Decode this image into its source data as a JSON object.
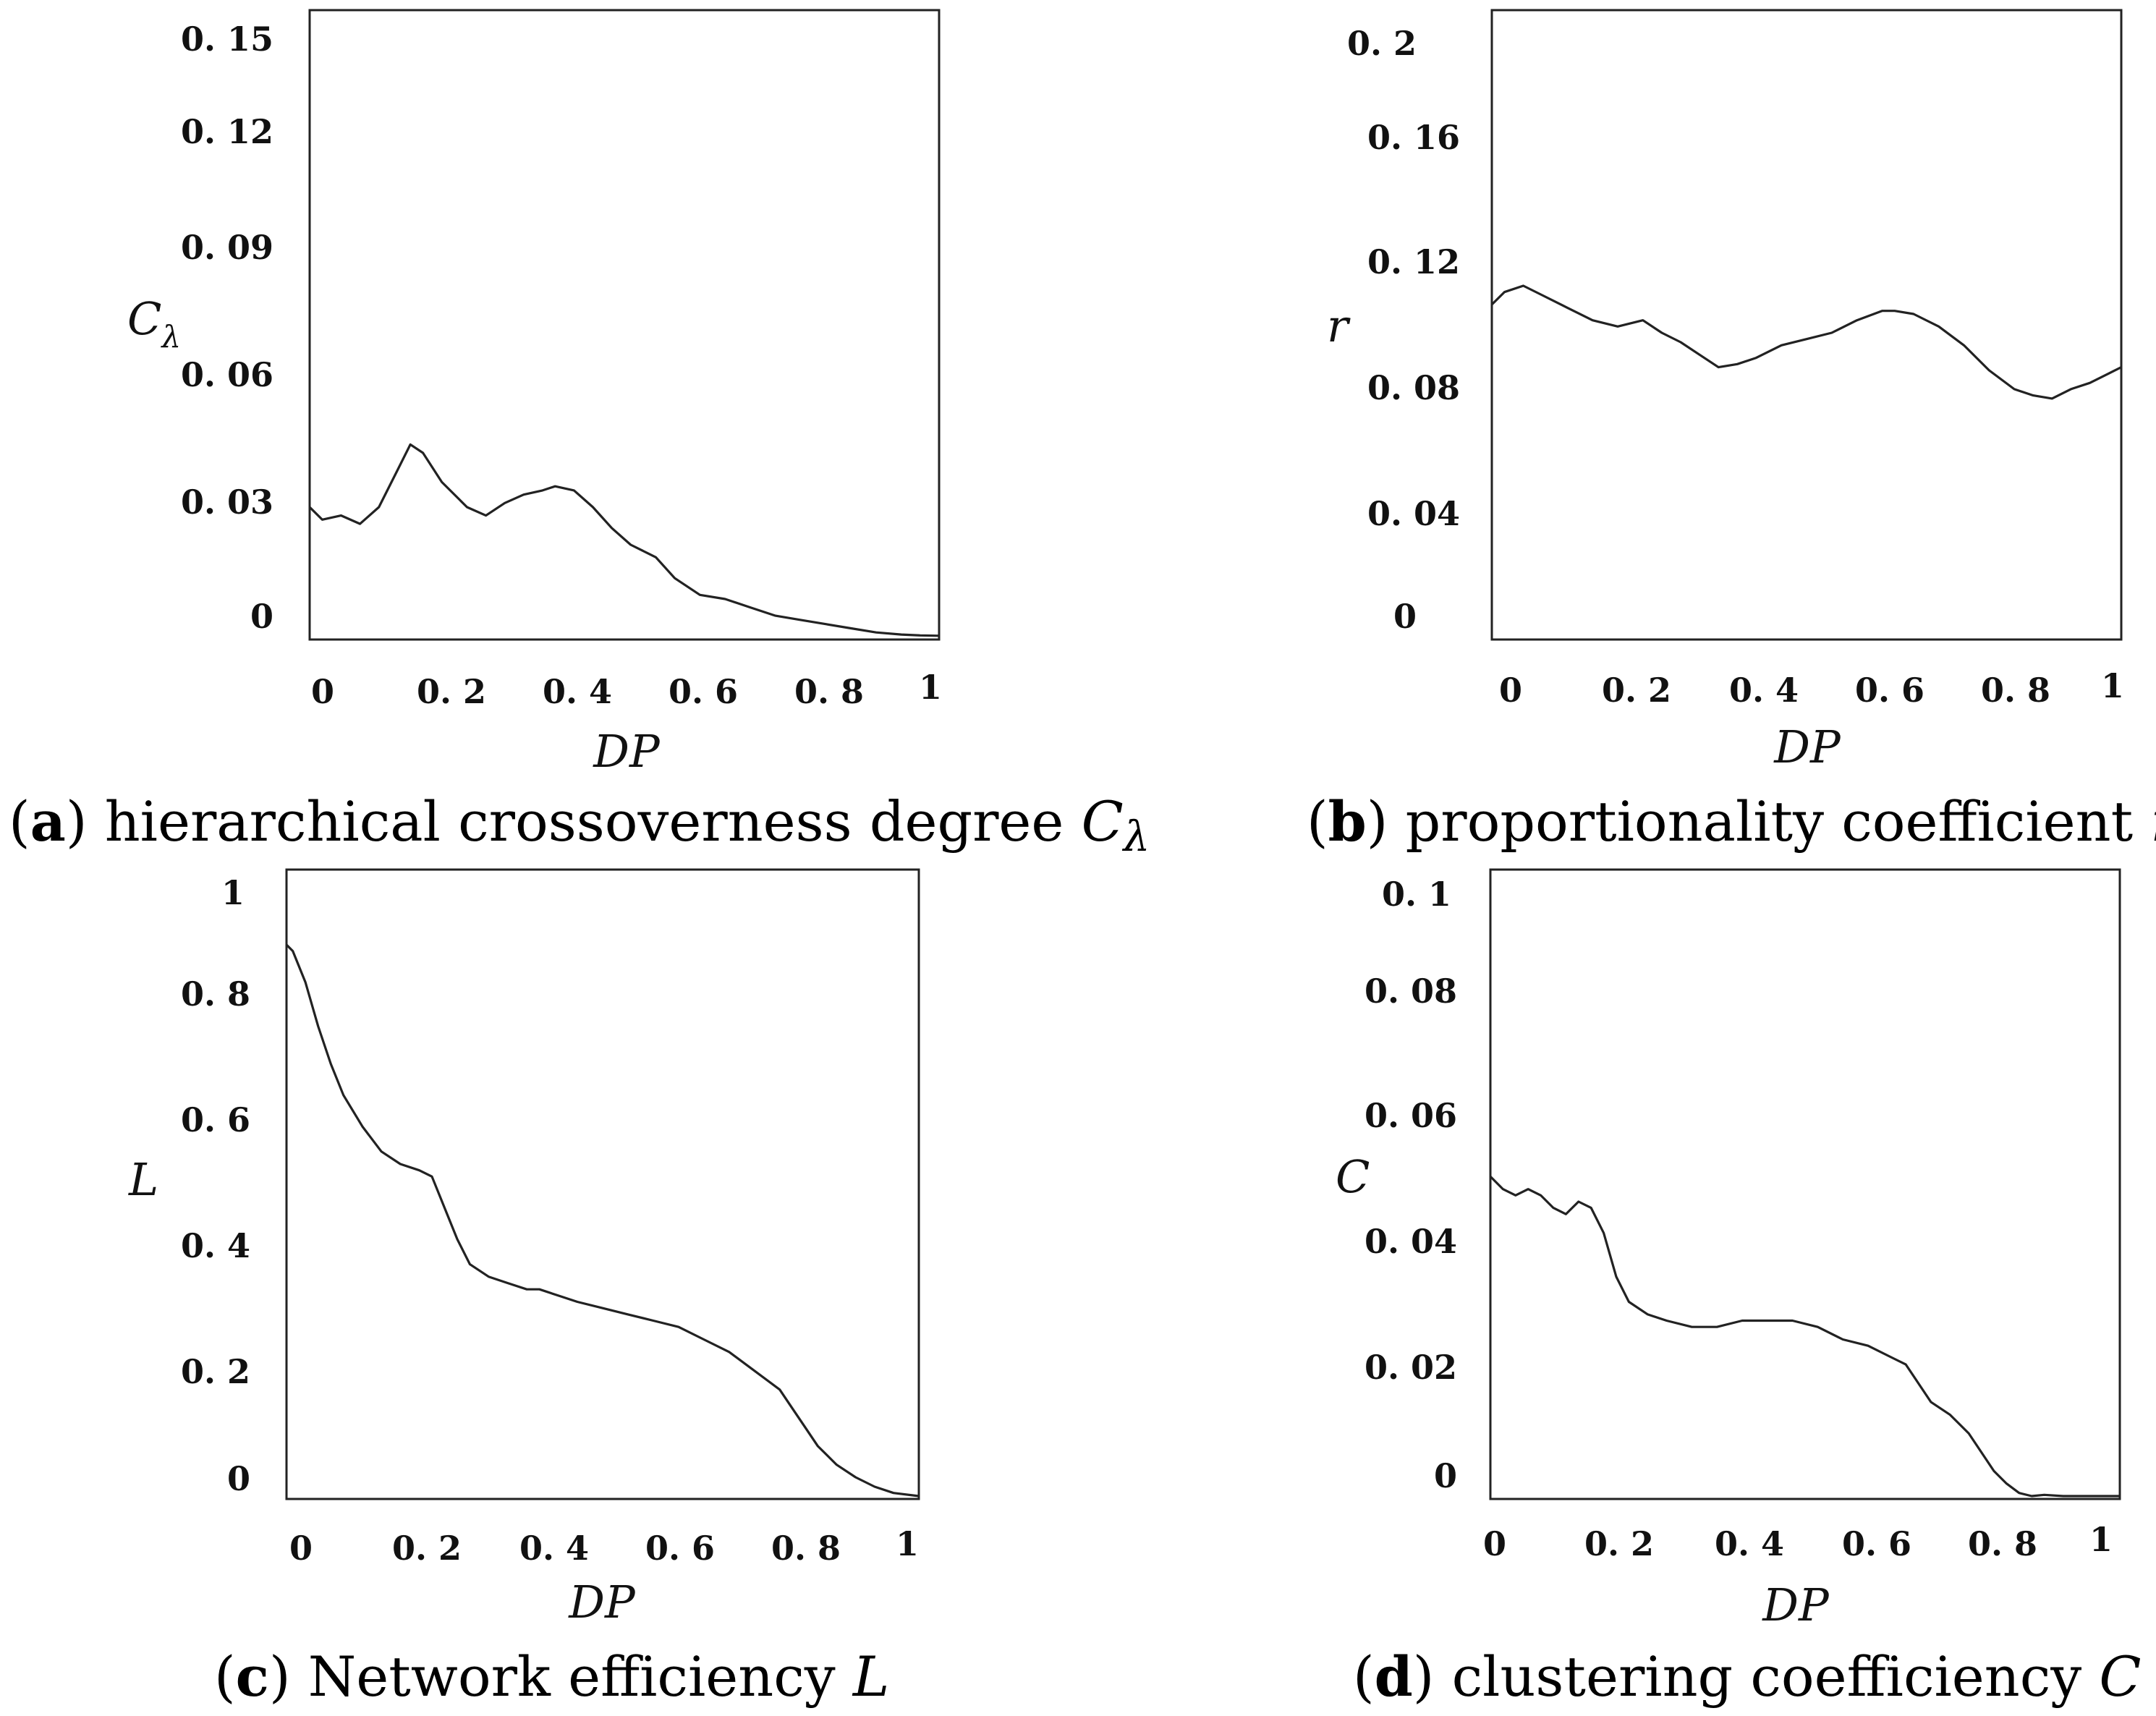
{
  "chart_data": [
    {
      "type": "line",
      "panel": "a",
      "caption_text": "hierarchical crossoverness degree",
      "caption_symbol": "C",
      "caption_sub": "λ",
      "xlabel": "DP",
      "ylabel": "C",
      "ylabel_sub": "λ",
      "xlim": [
        0,
        1
      ],
      "ylim": [
        0,
        0.15
      ],
      "xticks": [
        "0",
        "0. 2",
        "0. 4",
        "0. 6",
        "0. 8",
        "1"
      ],
      "yticks": [
        "0",
        "0. 03",
        "0. 06",
        "0. 09",
        "0. 12",
        "0. 15"
      ],
      "series": [
        {
          "name": "C_lambda",
          "x": [
            0,
            0.02,
            0.05,
            0.08,
            0.11,
            0.14,
            0.16,
            0.18,
            0.21,
            0.25,
            0.28,
            0.31,
            0.34,
            0.37,
            0.39,
            0.42,
            0.45,
            0.48,
            0.51,
            0.55,
            0.58,
            0.62,
            0.66,
            0.7,
            0.74,
            0.78,
            0.82,
            0.86,
            0.9,
            0.94,
            0.97,
            1.0
          ],
          "values": [
            0.031,
            0.028,
            0.029,
            0.027,
            0.031,
            0.04,
            0.046,
            0.044,
            0.037,
            0.031,
            0.029,
            0.032,
            0.034,
            0.035,
            0.036,
            0.035,
            0.031,
            0.026,
            0.022,
            0.019,
            0.014,
            0.01,
            0.009,
            0.007,
            0.005,
            0.004,
            0.003,
            0.002,
            0.001,
            0.0005,
            0.0003,
            0.0002
          ]
        }
      ]
    },
    {
      "type": "line",
      "panel": "b",
      "caption_text": "proportionality coefficient",
      "caption_symbol": "r",
      "caption_sub": "",
      "xlabel": "DP",
      "ylabel": "r",
      "ylabel_sub": "",
      "xlim": [
        0,
        1
      ],
      "ylim": [
        0,
        0.2
      ],
      "xticks": [
        "0",
        "0. 2",
        "0. 4",
        "0. 6",
        "0. 8",
        "1"
      ],
      "yticks": [
        "0",
        "0. 04",
        "0. 08",
        "0. 12",
        "0. 16",
        "0. 2"
      ],
      "series": [
        {
          "name": "r",
          "x": [
            0,
            0.02,
            0.05,
            0.08,
            0.12,
            0.16,
            0.2,
            0.24,
            0.27,
            0.3,
            0.33,
            0.36,
            0.39,
            0.42,
            0.46,
            0.5,
            0.54,
            0.58,
            0.62,
            0.64,
            0.67,
            0.71,
            0.75,
            0.79,
            0.83,
            0.86,
            0.89,
            0.92,
            0.95,
            0.98,
            1.0
          ],
          "values": [
            0.106,
            0.11,
            0.112,
            0.109,
            0.105,
            0.101,
            0.099,
            0.101,
            0.097,
            0.094,
            0.09,
            0.086,
            0.087,
            0.089,
            0.093,
            0.095,
            0.097,
            0.101,
            0.104,
            0.104,
            0.103,
            0.099,
            0.093,
            0.085,
            0.079,
            0.077,
            0.076,
            0.079,
            0.081,
            0.084,
            0.086
          ]
        }
      ]
    },
    {
      "type": "line",
      "panel": "c",
      "caption_text": "Network efficiency",
      "caption_symbol": "L",
      "caption_sub": "",
      "xlabel": "DP",
      "ylabel": "L",
      "ylabel_sub": "",
      "xlim": [
        0,
        1
      ],
      "ylim": [
        0,
        1
      ],
      "xticks": [
        "0",
        "0. 2",
        "0. 4",
        "0. 6",
        "0. 8",
        "1"
      ],
      "yticks": [
        "0",
        "0. 2",
        "0. 4",
        "0. 6",
        "0. 8",
        "1"
      ],
      "series": [
        {
          "name": "L",
          "x": [
            0,
            0.01,
            0.03,
            0.05,
            0.07,
            0.09,
            0.12,
            0.15,
            0.18,
            0.21,
            0.23,
            0.25,
            0.27,
            0.29,
            0.32,
            0.35,
            0.38,
            0.4,
            0.43,
            0.46,
            0.5,
            0.54,
            0.58,
            0.62,
            0.66,
            0.7,
            0.74,
            0.78,
            0.8,
            0.82,
            0.84,
            0.87,
            0.9,
            0.93,
            0.96,
            1.0
          ],
          "values": [
            0.88,
            0.87,
            0.82,
            0.75,
            0.69,
            0.64,
            0.59,
            0.55,
            0.53,
            0.52,
            0.51,
            0.46,
            0.41,
            0.37,
            0.35,
            0.34,
            0.33,
            0.33,
            0.32,
            0.31,
            0.3,
            0.29,
            0.28,
            0.27,
            0.25,
            0.23,
            0.2,
            0.17,
            0.14,
            0.11,
            0.08,
            0.05,
            0.03,
            0.015,
            0.005,
            0.0
          ]
        }
      ]
    },
    {
      "type": "line",
      "panel": "d",
      "caption_text": "clustering coefficiency",
      "caption_symbol": "C",
      "caption_sub": "",
      "xlabel": "DP",
      "ylabel": "C",
      "ylabel_sub": "",
      "xlim": [
        0,
        1
      ],
      "ylim": [
        0,
        0.1
      ],
      "xticks": [
        "0",
        "0. 2",
        "0. 4",
        "0. 6",
        "0. 8",
        "1"
      ],
      "yticks": [
        "0",
        "0. 02",
        "0. 04",
        "0. 06",
        "0. 08",
        "0. 1"
      ],
      "series": [
        {
          "name": "C",
          "x": [
            0,
            0.02,
            0.04,
            0.06,
            0.08,
            0.1,
            0.12,
            0.14,
            0.16,
            0.18,
            0.2,
            0.22,
            0.25,
            0.28,
            0.32,
            0.36,
            0.4,
            0.44,
            0.48,
            0.52,
            0.56,
            0.6,
            0.64,
            0.66,
            0.68,
            0.7,
            0.73,
            0.76,
            0.78,
            0.8,
            0.82,
            0.84,
            0.86,
            0.88,
            0.91,
            0.95,
            1.0
          ],
          "values": [
            0.051,
            0.049,
            0.048,
            0.049,
            0.048,
            0.046,
            0.045,
            0.047,
            0.046,
            0.042,
            0.035,
            0.031,
            0.029,
            0.028,
            0.027,
            0.027,
            0.028,
            0.028,
            0.028,
            0.027,
            0.025,
            0.024,
            0.022,
            0.021,
            0.018,
            0.015,
            0.013,
            0.01,
            0.007,
            0.004,
            0.002,
            0.0005,
            0.0,
            0.0002,
            0.0,
            0.0,
            0.0
          ]
        }
      ]
    }
  ]
}
